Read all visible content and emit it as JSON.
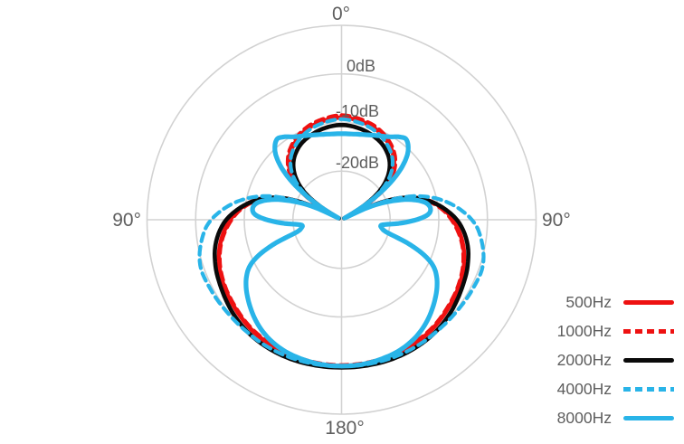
{
  "chart_data": {
    "type": "line",
    "subtype": "polar-pattern",
    "title": "",
    "angle_unit": "degrees",
    "angle_convention": "0 degrees at top, increasing toward bottom, curves mirrored left/right",
    "angle_labels": {
      "top": "0°",
      "left": "90°",
      "right": "90°",
      "bottom": "180°"
    },
    "radial_axis": {
      "unit": "dB",
      "center_db": -30,
      "outer_db": 10,
      "ring_step_db": 10,
      "rings_db": [
        10,
        0,
        -10,
        -20
      ],
      "ring_labels": [
        "0dB",
        "-10dB",
        "-20dB"
      ],
      "ring_labels_db": [
        0,
        -10,
        -20
      ]
    },
    "grid": {
      "color": "#d2d2d2",
      "axis_cross": true,
      "circles": 4
    },
    "label_color": "#5e5e5e",
    "legend_position": "right-bottom",
    "series": [
      {
        "name": "500Hz",
        "color": "#ee1111",
        "style": "solid",
        "points_deg_db": [
          [
            0,
            -9.0
          ],
          [
            10,
            -9.3
          ],
          [
            20,
            -10.0
          ],
          [
            30,
            -11.3
          ],
          [
            40,
            -13.3
          ],
          [
            48,
            -16.0
          ],
          [
            54,
            -19.5
          ],
          [
            58,
            -23.5
          ],
          [
            61,
            -29.3
          ],
          [
            65,
            -23.0
          ],
          [
            70,
            -17.0
          ],
          [
            76,
            -12.5
          ],
          [
            83,
            -9.3
          ],
          [
            90,
            -7.1
          ],
          [
            100,
            -4.8
          ],
          [
            110,
            -3.2
          ],
          [
            120,
            -2.2
          ],
          [
            130,
            -1.5
          ],
          [
            140,
            -0.8
          ],
          [
            150,
            -0.4
          ],
          [
            160,
            -0.1
          ],
          [
            170,
            0.0
          ],
          [
            180,
            0.05
          ]
        ]
      },
      {
        "name": "1000Hz",
        "color": "#ee1111",
        "style": "dashed",
        "points_deg_db": [
          [
            0,
            -8.5
          ],
          [
            10,
            -8.9
          ],
          [
            20,
            -9.6
          ],
          [
            30,
            -10.9
          ],
          [
            40,
            -12.9
          ],
          [
            48,
            -15.6
          ],
          [
            54,
            -19.0
          ],
          [
            58,
            -23.0
          ],
          [
            61,
            -29.3
          ],
          [
            65,
            -23.2
          ],
          [
            70,
            -17.3
          ],
          [
            76,
            -12.8
          ],
          [
            83,
            -9.6
          ],
          [
            90,
            -7.4
          ],
          [
            100,
            -5.0
          ],
          [
            110,
            -3.4
          ],
          [
            120,
            -2.4
          ],
          [
            130,
            -1.7
          ],
          [
            140,
            -1.0
          ],
          [
            150,
            -0.6
          ],
          [
            160,
            -0.3
          ],
          [
            170,
            -0.15
          ],
          [
            180,
            -0.1
          ]
        ]
      },
      {
        "name": "2000Hz",
        "color": "#0a0a0a",
        "style": "solid",
        "points_deg_db": [
          [
            0,
            -10.5
          ],
          [
            10,
            -10.8
          ],
          [
            20,
            -11.5
          ],
          [
            30,
            -12.6
          ],
          [
            40,
            -14.6
          ],
          [
            48,
            -17.5
          ],
          [
            54,
            -21.0
          ],
          [
            58,
            -25.0
          ],
          [
            61,
            -29.4
          ],
          [
            64,
            -25.0
          ],
          [
            68,
            -19.0
          ],
          [
            73,
            -14.5
          ],
          [
            80,
            -10.5
          ],
          [
            90,
            -6.3
          ],
          [
            100,
            -3.8
          ],
          [
            110,
            -2.4
          ],
          [
            120,
            -1.5
          ],
          [
            130,
            -0.6
          ],
          [
            140,
            0.1
          ],
          [
            150,
            0.4
          ],
          [
            160,
            0.5
          ],
          [
            170,
            0.45
          ],
          [
            180,
            0.4
          ]
        ]
      },
      {
        "name": "4000Hz",
        "color": "#29b4e8",
        "style": "dashed",
        "points_deg_db": [
          [
            0,
            -9.3
          ],
          [
            10,
            -9.7
          ],
          [
            20,
            -10.4
          ],
          [
            30,
            -11.7
          ],
          [
            40,
            -13.7
          ],
          [
            48,
            -16.6
          ],
          [
            54,
            -20.2
          ],
          [
            58,
            -24.3
          ],
          [
            61,
            -29.4
          ],
          [
            66,
            -21.8
          ],
          [
            72,
            -14.3
          ],
          [
            80,
            -8.3
          ],
          [
            90,
            -3.2
          ],
          [
            98,
            -1.0
          ],
          [
            108,
            0.55
          ],
          [
            118,
            0.5
          ],
          [
            130,
            0.25
          ],
          [
            140,
            0.2
          ],
          [
            150,
            0.25
          ],
          [
            160,
            0.25
          ],
          [
            170,
            0.2
          ],
          [
            180,
            0.15
          ]
        ]
      },
      {
        "name": "8000Hz",
        "color": "#29b4e8",
        "style": "solid",
        "points_deg_db": [
          [
            0,
            -12.3
          ],
          [
            8,
            -12.2
          ],
          [
            16,
            -11.8
          ],
          [
            24,
            -11.1
          ],
          [
            30,
            -10.3
          ],
          [
            35,
            -9.2
          ],
          [
            39,
            -8.8
          ],
          [
            44,
            -10.3
          ],
          [
            48,
            -12.8
          ],
          [
            52,
            -16.5
          ],
          [
            56,
            -21.5
          ],
          [
            59,
            -25.5
          ],
          [
            62,
            -29.2
          ],
          [
            65,
            -24.0
          ],
          [
            69,
            -19.5
          ],
          [
            74,
            -15.0
          ],
          [
            79,
            -12.2
          ],
          [
            84,
            -11.6
          ],
          [
            88,
            -13.0
          ],
          [
            93,
            -17.5
          ],
          [
            97,
            -21.5
          ],
          [
            102,
            -21.5
          ],
          [
            106,
            -20.0
          ],
          [
            110,
            -15.0
          ],
          [
            114,
            -10.8
          ],
          [
            118,
            -8.3
          ],
          [
            124,
            -6.3
          ],
          [
            132,
            -4.4
          ],
          [
            140,
            -2.7
          ],
          [
            148,
            -1.4
          ],
          [
            156,
            -0.6
          ],
          [
            164,
            -0.2
          ],
          [
            172,
            0.05
          ],
          [
            180,
            0.1
          ]
        ]
      }
    ]
  }
}
